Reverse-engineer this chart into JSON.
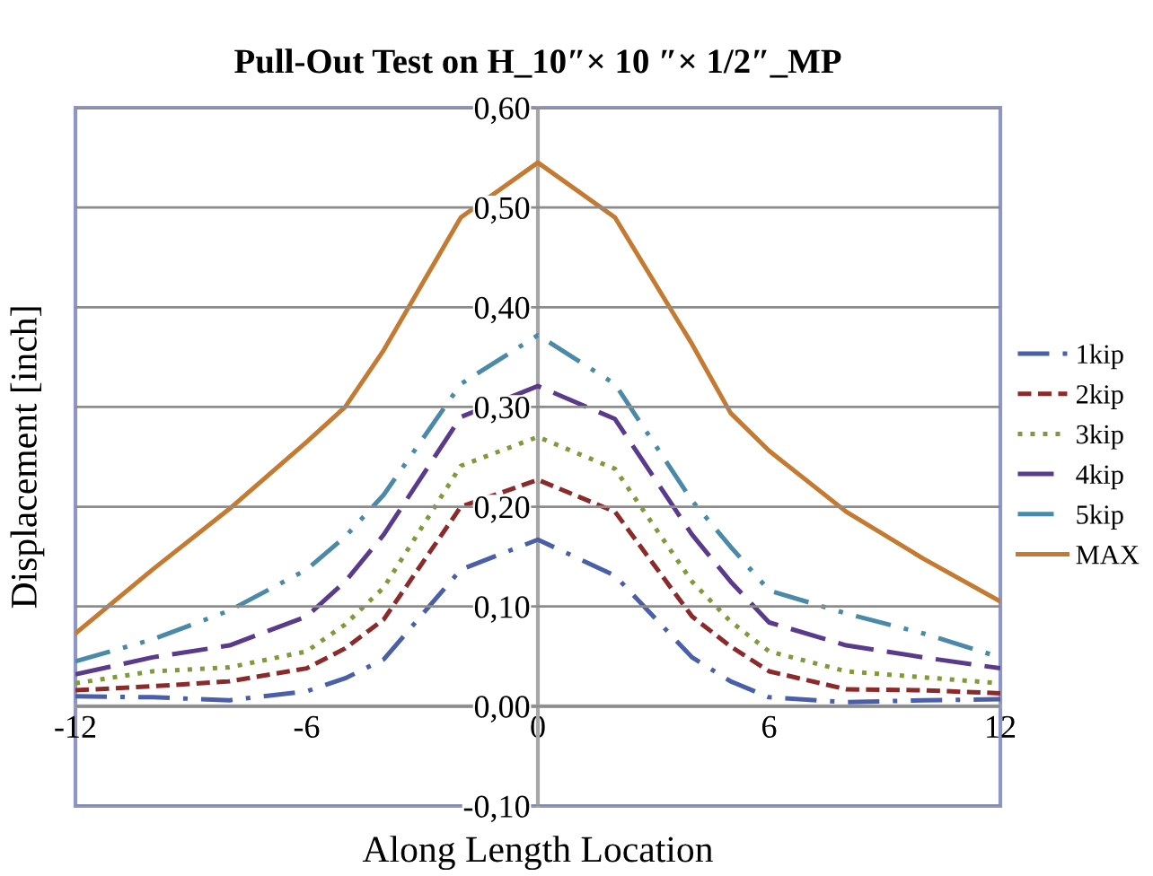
{
  "chart_data": {
    "type": "line",
    "title": "Pull-Out Test on H_10″× 10 ″× 1/2″_MP",
    "xlabel": "Along Length Location",
    "ylabel": "Displacement [inch]",
    "x": [
      -12,
      -10,
      -8,
      -6,
      -5,
      -4,
      -2,
      0,
      2,
      4,
      5,
      6,
      8,
      10,
      12
    ],
    "series": [
      {
        "name": "1kip",
        "color": "#4a5fa8",
        "line_style": "dashdot",
        "values": [
          0.01,
          0.009,
          0.006,
          0.015,
          0.028,
          0.047,
          0.137,
          0.167,
          0.131,
          0.049,
          0.025,
          0.009,
          0.004,
          0.006,
          0.007
        ]
      },
      {
        "name": "2kip",
        "color": "#8b2a2a",
        "line_style": "dashed",
        "values": [
          0.016,
          0.02,
          0.025,
          0.038,
          0.058,
          0.087,
          0.2,
          0.227,
          0.195,
          0.09,
          0.06,
          0.035,
          0.017,
          0.016,
          0.013
        ]
      },
      {
        "name": "3kip",
        "color": "#7f9a3a",
        "line_style": "dotted",
        "values": [
          0.023,
          0.035,
          0.039,
          0.055,
          0.082,
          0.119,
          0.241,
          0.27,
          0.238,
          0.125,
          0.085,
          0.055,
          0.035,
          0.029,
          0.023
        ]
      },
      {
        "name": "4kip",
        "color": "#5a3a8a",
        "line_style": "longdash",
        "values": [
          0.032,
          0.049,
          0.061,
          0.09,
          0.125,
          0.172,
          0.29,
          0.321,
          0.288,
          0.172,
          0.125,
          0.084,
          0.061,
          0.049,
          0.038
        ]
      },
      {
        "name": "5kip",
        "color": "#4a8aa8",
        "line_style": "dashdotdot",
        "values": [
          0.045,
          0.067,
          0.096,
          0.137,
          0.17,
          0.212,
          0.323,
          0.372,
          0.323,
          0.206,
          0.16,
          0.116,
          0.093,
          0.073,
          0.049
        ]
      },
      {
        "name": "MAX",
        "color": "#c47a30",
        "line_style": "solid",
        "values": [
          0.073,
          0.137,
          0.198,
          0.265,
          0.3,
          0.357,
          0.49,
          0.545,
          0.49,
          0.363,
          0.294,
          0.256,
          0.195,
          0.148,
          0.105
        ]
      }
    ],
    "xlim": [
      -12,
      12
    ],
    "xticks": [
      -12,
      -6,
      0,
      6,
      12
    ],
    "ylim": [
      -0.1,
      0.6
    ],
    "yticks": [
      {
        "value": -0.1,
        "label": "-0,10"
      },
      {
        "value": 0,
        "label": "0,00"
      },
      {
        "value": 0.1,
        "label": "0,10"
      },
      {
        "value": 0.2,
        "label": "0,20"
      },
      {
        "value": 0.3,
        "label": "0,30"
      },
      {
        "value": 0.4,
        "label": "0,40"
      },
      {
        "value": 0.5,
        "label": "0,50"
      },
      {
        "value": 0.6,
        "label": "0,60"
      }
    ],
    "grid": "y",
    "legend": "right",
    "marker": "none"
  }
}
